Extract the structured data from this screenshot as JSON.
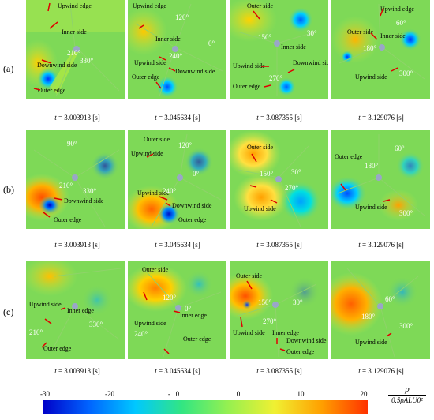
{
  "rows": [
    {
      "label": "(a)",
      "panels": [
        {
          "ann": [
            "Upwind edge",
            "Inner side",
            "Downwind side",
            "Outer edge"
          ],
          "angles": [
            "210°",
            "330°"
          ]
        },
        {
          "ann": [
            "Upwind edge",
            "Inner side",
            "Upwind side",
            "Downwind side",
            "Outer edge"
          ],
          "angles": [
            "120°",
            "240°",
            "0°"
          ]
        },
        {
          "ann": [
            "Outer side",
            "Inner side",
            "Upwind side",
            "Downwind side",
            "Outer edge"
          ],
          "angles": [
            "150°",
            "30°",
            "270°"
          ]
        },
        {
          "ann": [
            "Upwind edge",
            "Outer side",
            "Inner side",
            "Upwind side"
          ],
          "angles": [
            "60°",
            "180°",
            "300°"
          ]
        }
      ]
    },
    {
      "label": "(b)",
      "panels": [
        {
          "ann": [
            "Downwind side",
            "Outer edge"
          ],
          "angles": [
            "90°",
            "210°",
            "330°"
          ]
        },
        {
          "ann": [
            "Outer side",
            "Upwind side",
            "Upwind side",
            "Downwind side",
            "Outer edge"
          ],
          "angles": [
            "120°",
            "0°",
            "240°"
          ]
        },
        {
          "ann": [
            "Outer side",
            "Upwind side"
          ],
          "angles": [
            "150°",
            "30°",
            "270°"
          ]
        },
        {
          "ann": [
            "Outer edge",
            "Upwind side"
          ],
          "angles": [
            "60°",
            "180°",
            "300°"
          ]
        }
      ]
    },
    {
      "label": "(c)",
      "panels": [
        {
          "ann": [
            "Upwind side",
            "Inner edge",
            "Outer edge"
          ],
          "angles": [
            "210°",
            "330°"
          ]
        },
        {
          "ann": [
            "Outer side",
            "Inner edge",
            "Upwind side",
            "Outer edge"
          ],
          "angles": [
            "120°",
            "0°",
            "240°"
          ]
        },
        {
          "ann": [
            "Outer side",
            "Upwind side",
            "Inner edge",
            "Downwind side",
            "Outer edge"
          ],
          "angles": [
            "150°",
            "30°",
            "270°"
          ]
        },
        {
          "ann": [
            "Upwind side"
          ],
          "angles": [
            "60°",
            "180°",
            "300°"
          ]
        }
      ]
    }
  ],
  "times": [
    "3.003913",
    "3.045634",
    "3.087355",
    "3.129076"
  ],
  "time_prefix": "t = ",
  "time_unit": " [s]",
  "colorbar": {
    "ticks": [
      "-30",
      "-20",
      "- 10",
      "0",
      "10",
      "20"
    ],
    "colors": [
      "#0000c8",
      "#0064ff",
      "#00c8ff",
      "#32e682",
      "#96f050",
      "#f0f032",
      "#ffa000",
      "#ff3200"
    ],
    "unit_numerator": "p",
    "unit_denominator": "0.5ρALU0²"
  },
  "colors": {
    "arrow": "#e00000",
    "label_dark": "#000000",
    "label_light": "#ffffff",
    "field": "#7ed957"
  }
}
